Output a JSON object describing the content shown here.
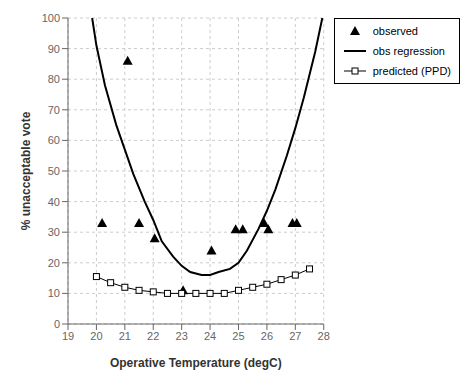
{
  "chart_data": {
    "type": "line",
    "xlabel": "Operative Temperature (degC)",
    "ylabel": "% unacceptable vote",
    "xlim": [
      19,
      28
    ],
    "ylim": [
      0,
      100
    ],
    "xticks": [
      19,
      20,
      21,
      22,
      23,
      24,
      25,
      26,
      27,
      28
    ],
    "yticks": [
      0,
      10,
      20,
      30,
      40,
      50,
      60,
      70,
      80,
      90,
      100
    ],
    "grid": true,
    "legend": "right",
    "series": [
      {
        "name": "observed",
        "type": "scatter",
        "marker": "triangle",
        "color": "#000000",
        "x": [
          20.2,
          21.1,
          21.5,
          22.05,
          23.05,
          24.05,
          24.9,
          25.15,
          25.9,
          26.05,
          26.9,
          27.05
        ],
        "values": [
          33,
          86,
          33,
          28,
          11,
          24,
          31,
          31,
          33,
          31,
          33,
          33
        ]
      },
      {
        "name": "obs regression",
        "type": "line",
        "line_style": "solid",
        "color": "#000000",
        "x": [
          19.85,
          20.0,
          20.3,
          20.7,
          21.0,
          21.3,
          21.7,
          22.0,
          22.3,
          22.7,
          23.0,
          23.3,
          23.7,
          24.0,
          24.3,
          24.7,
          25.0,
          25.3,
          25.7,
          26.0,
          26.3,
          26.7,
          27.0,
          27.3,
          27.7,
          27.95
        ],
        "values": [
          100,
          91,
          78,
          65,
          57,
          49,
          40,
          34,
          27,
          22,
          19,
          17,
          16,
          16,
          17,
          18,
          20,
          24,
          31,
          37,
          44,
          55,
          64,
          74,
          89,
          100
        ]
      },
      {
        "name": "predicted (PPD)",
        "type": "line",
        "line_style": "solid",
        "marker": "square",
        "color": "#000000",
        "x": [
          20,
          20.5,
          21,
          21.5,
          22,
          22.5,
          23,
          23.5,
          24,
          24.5,
          25,
          25.5,
          26,
          26.5,
          27,
          27.5
        ],
        "values": [
          15.5,
          13.5,
          12,
          11,
          10.5,
          10,
          10,
          10,
          10,
          10,
          11,
          12,
          13,
          14.5,
          16,
          18
        ]
      }
    ]
  }
}
